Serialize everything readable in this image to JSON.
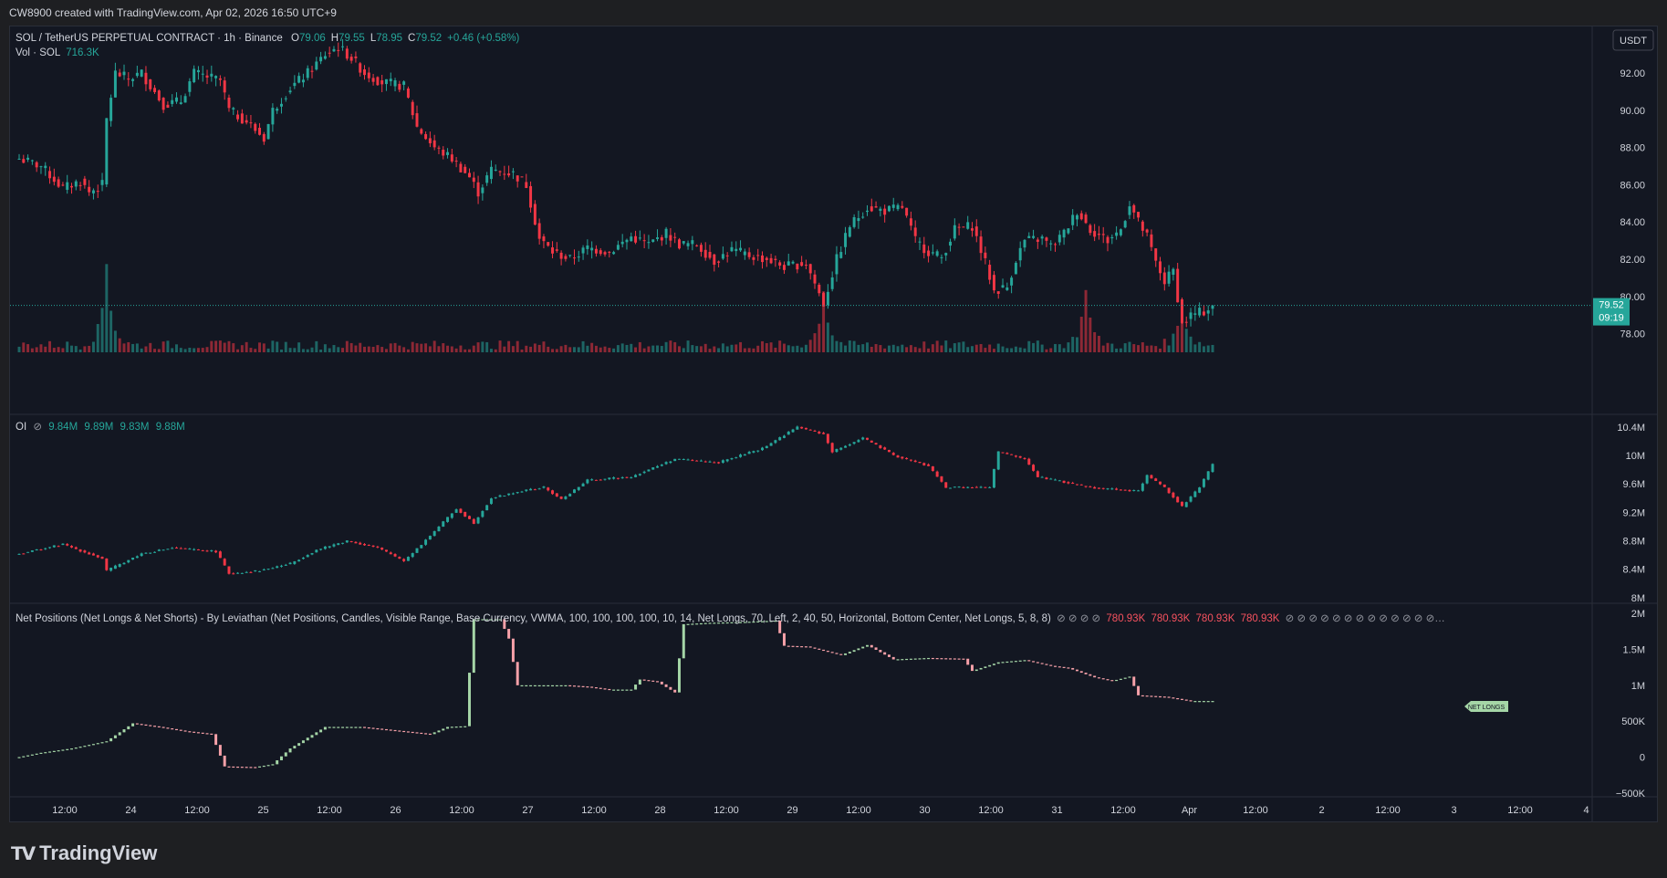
{
  "header": {
    "created_by": "CW8900 created with TradingView.com, Apr 02, 2026 16:50 UTC+9"
  },
  "legend": {
    "symbol": "SOL / TetherUS PERPETUAL CONTRACT · 1h · Binance",
    "o_label": "O",
    "o_value": "79.06",
    "h_label": "H",
    "h_value": "79.55",
    "l_label": "L",
    "l_value": "78.95",
    "c_label": "C",
    "c_value": "79.52",
    "change": "+0.46 (+0.58%)",
    "vol_label": "Vol · SOL",
    "vol_value": "716.3K"
  },
  "currency_button": "USDT",
  "price_badge": {
    "price": "79.52",
    "countdown": "09:19"
  },
  "oi_legend": {
    "label": "OI",
    "values": [
      "9.84M",
      "9.89M",
      "9.83M",
      "9.88M"
    ]
  },
  "np_legend": {
    "text": "Net Positions (Net Longs & Net Shorts) - By Leviathan (Net Positions, Candles, Visible Range, Base Currency, VWMA, 100, 100, 100, 100, 10, 14, Net Longs, 70, Left, 2, 40, 50, Horizontal, Bottom Center, Net Longs, 5, 8, 8)",
    "values": [
      "780.93K",
      "780.93K",
      "780.93K",
      "780.93K"
    ]
  },
  "np_label_tag": "NET LONGS",
  "logo_text": "TradingView",
  "colors": {
    "up": "#26a69a",
    "down": "#f23645",
    "np_up": "#a5d6a7",
    "np_down": "#f7a1a9",
    "bg": "#131722"
  },
  "chart_data": [
    {
      "type": "candlestick",
      "pane": "price",
      "y_ticks": [
        "92.00",
        "90.00",
        "88.00",
        "86.00",
        "84.00",
        "82.00",
        "80.00",
        "78.00"
      ],
      "ylim": [
        77,
        94.5
      ],
      "x_ticks": [
        "12:00",
        "24",
        "12:00",
        "25",
        "12:00",
        "26",
        "12:00",
        "27",
        "12:00",
        "28",
        "12:00",
        "29",
        "12:00",
        "30",
        "12:00",
        "31",
        "12:00",
        "Apr",
        "12:00",
        "2",
        "12:00",
        "3",
        "12:00",
        "4"
      ],
      "close_path": [
        [
          0,
          87.4
        ],
        [
          5,
          87.0
        ],
        [
          10,
          85.8
        ],
        [
          14,
          86.2
        ],
        [
          16,
          85.6
        ],
        [
          19,
          86.0
        ],
        [
          20,
          89.5
        ],
        [
          22,
          92.0
        ],
        [
          25,
          91.7
        ],
        [
          28,
          92.0
        ],
        [
          33,
          90.3
        ],
        [
          37,
          90.5
        ],
        [
          40,
          92.0
        ],
        [
          46,
          91.6
        ],
        [
          48,
          90.0
        ],
        [
          52,
          89.4
        ],
        [
          56,
          88.5
        ],
        [
          58,
          90.0
        ],
        [
          62,
          91.2
        ],
        [
          66,
          92.0
        ],
        [
          70,
          93.0
        ],
        [
          73,
          93.4
        ],
        [
          76,
          92.8
        ],
        [
          79,
          92.0
        ],
        [
          83,
          91.5
        ],
        [
          88,
          91.3
        ],
        [
          91,
          89.1
        ],
        [
          95,
          88.0
        ],
        [
          99,
          87.4
        ],
        [
          103,
          86.4
        ],
        [
          105,
          85.6
        ],
        [
          108,
          86.8
        ],
        [
          113,
          86.6
        ],
        [
          116,
          86.0
        ],
        [
          119,
          83.1
        ],
        [
          122,
          82.4
        ],
        [
          126,
          82.0
        ],
        [
          130,
          82.6
        ],
        [
          135,
          82.4
        ],
        [
          140,
          83.2
        ],
        [
          144,
          82.8
        ],
        [
          148,
          83.4
        ],
        [
          151,
          82.8
        ],
        [
          155,
          82.8
        ],
        [
          159,
          81.9
        ],
        [
          163,
          82.5
        ],
        [
          167,
          82.2
        ],
        [
          171,
          82.0
        ],
        [
          175,
          81.6
        ],
        [
          180,
          81.8
        ],
        [
          184,
          79.6
        ],
        [
          187,
          82.0
        ],
        [
          190,
          83.8
        ],
        [
          194,
          84.8
        ],
        [
          198,
          84.6
        ],
        [
          202,
          84.8
        ],
        [
          205,
          83.0
        ],
        [
          208,
          82.4
        ],
        [
          211,
          82.1
        ],
        [
          214,
          83.6
        ],
        [
          218,
          83.8
        ],
        [
          221,
          81.8
        ],
        [
          223,
          80.3
        ],
        [
          226,
          80.5
        ],
        [
          228,
          82.0
        ],
        [
          230,
          83.0
        ],
        [
          234,
          83.1
        ],
        [
          236,
          82.7
        ],
        [
          239,
          83.4
        ],
        [
          242,
          84.6
        ],
        [
          245,
          83.6
        ],
        [
          249,
          83.0
        ],
        [
          252,
          83.6
        ],
        [
          254,
          85.0
        ],
        [
          256,
          84.0
        ],
        [
          258,
          83.2
        ],
        [
          260,
          81.8
        ],
        [
          262,
          80.8
        ],
        [
          264,
          81.4
        ],
        [
          266,
          78.5
        ],
        [
          268,
          79.0
        ],
        [
          271,
          79.2
        ],
        [
          273,
          79.52
        ]
      ],
      "last_price": 79.52,
      "volume_spikes": [
        [
          20,
          4.5
        ],
        [
          184,
          3.0
        ],
        [
          244,
          3.2
        ],
        [
          266,
          2.3
        ]
      ]
    },
    {
      "type": "candlestick",
      "pane": "open_interest",
      "y_ticks": [
        "10.4M",
        "10M",
        "9.6M",
        "9.2M",
        "8.8M",
        "8.4M",
        "8M"
      ],
      "ylim": [
        7.96,
        10.5
      ],
      "close_path": [
        [
          0,
          8.62
        ],
        [
          10,
          8.75
        ],
        [
          19,
          8.55
        ],
        [
          20,
          8.38
        ],
        [
          28,
          8.62
        ],
        [
          35,
          8.7
        ],
        [
          45,
          8.65
        ],
        [
          48,
          8.34
        ],
        [
          55,
          8.38
        ],
        [
          62,
          8.48
        ],
        [
          68,
          8.67
        ],
        [
          75,
          8.8
        ],
        [
          82,
          8.7
        ],
        [
          88,
          8.52
        ],
        [
          92,
          8.75
        ],
        [
          100,
          9.25
        ],
        [
          104,
          9.05
        ],
        [
          108,
          9.4
        ],
        [
          115,
          9.5
        ],
        [
          120,
          9.55
        ],
        [
          124,
          9.38
        ],
        [
          130,
          9.65
        ],
        [
          140,
          9.7
        ],
        [
          150,
          9.95
        ],
        [
          160,
          9.9
        ],
        [
          170,
          10.1
        ],
        [
          178,
          10.4
        ],
        [
          184,
          10.3
        ],
        [
          186,
          10.05
        ],
        [
          193,
          10.25
        ],
        [
          200,
          10.0
        ],
        [
          208,
          9.85
        ],
        [
          212,
          9.55
        ],
        [
          222,
          9.55
        ],
        [
          224,
          10.05
        ],
        [
          230,
          9.95
        ],
        [
          233,
          9.7
        ],
        [
          245,
          9.55
        ],
        [
          256,
          9.5
        ],
        [
          258,
          9.72
        ],
        [
          262,
          9.55
        ],
        [
          266,
          9.28
        ],
        [
          270,
          9.55
        ],
        [
          273,
          9.88
        ]
      ]
    },
    {
      "type": "candlestick",
      "pane": "net_positions",
      "y_ticks": [
        "2M",
        "1.5M",
        "1M",
        "500K",
        "0",
        "−500K"
      ],
      "ylim": [
        -540000,
        2040000
      ],
      "close_path": [
        [
          0,
          0
        ],
        [
          5,
          60000
        ],
        [
          12,
          120000
        ],
        [
          20,
          220000
        ],
        [
          26,
          470000
        ],
        [
          32,
          420000
        ],
        [
          38,
          360000
        ],
        [
          44,
          320000
        ],
        [
          47,
          -130000
        ],
        [
          54,
          -140000
        ],
        [
          58,
          -100000
        ],
        [
          62,
          120000
        ],
        [
          70,
          420000
        ],
        [
          78,
          420000
        ],
        [
          86,
          370000
        ],
        [
          94,
          320000
        ],
        [
          98,
          420000
        ],
        [
          102,
          430000
        ],
        [
          104,
          1920000
        ],
        [
          110,
          1920000
        ],
        [
          112,
          1650000
        ],
        [
          114,
          1000000
        ],
        [
          125,
          1000000
        ],
        [
          130,
          980000
        ],
        [
          135,
          940000
        ],
        [
          140,
          940000
        ],
        [
          142,
          1080000
        ],
        [
          146,
          1050000
        ],
        [
          150,
          900000
        ],
        [
          152,
          1850000
        ],
        [
          158,
          1870000
        ],
        [
          165,
          1880000
        ],
        [
          173,
          1900000
        ],
        [
          175,
          1550000
        ],
        [
          180,
          1540000
        ],
        [
          188,
          1420000
        ],
        [
          194,
          1560000
        ],
        [
          200,
          1360000
        ],
        [
          208,
          1380000
        ],
        [
          216,
          1370000
        ],
        [
          218,
          1200000
        ],
        [
          224,
          1320000
        ],
        [
          230,
          1350000
        ],
        [
          236,
          1270000
        ],
        [
          240,
          1240000
        ],
        [
          246,
          1110000
        ],
        [
          250,
          1060000
        ],
        [
          254,
          1120000
        ],
        [
          256,
          860000
        ],
        [
          262,
          840000
        ],
        [
          268,
          780930
        ]
      ]
    }
  ]
}
